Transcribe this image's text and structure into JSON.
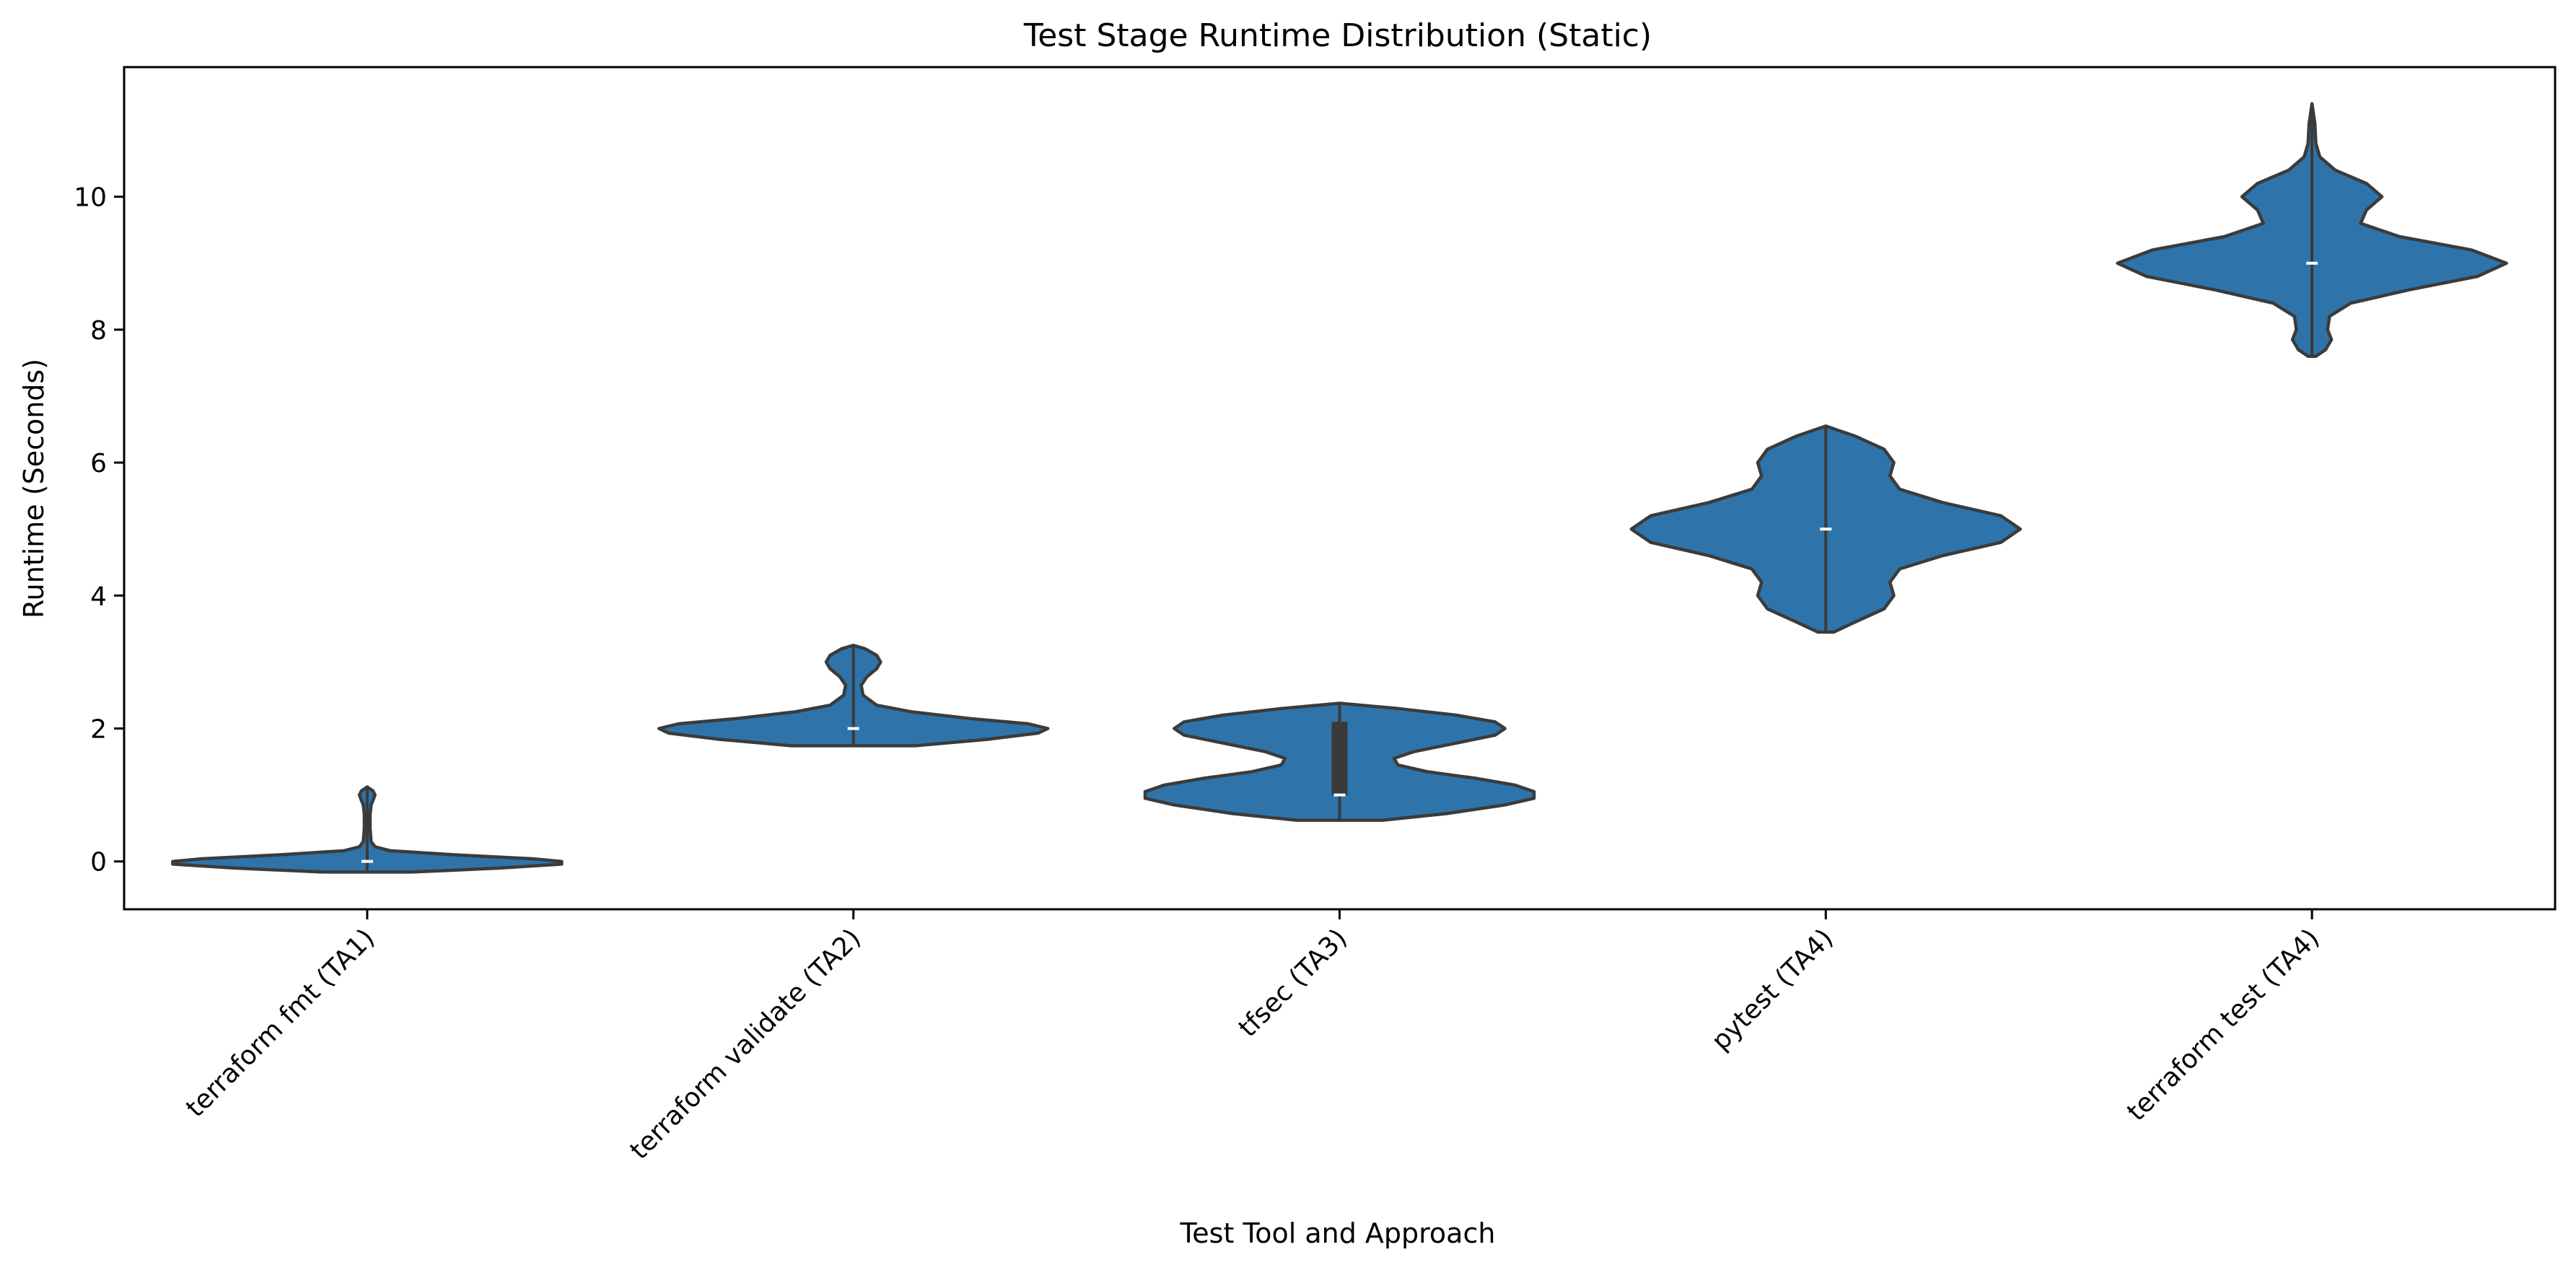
{
  "chart_data": {
    "type": "violin",
    "title": "Test Stage Runtime Distribution (Static)",
    "xlabel": "Test Tool and Approach",
    "ylabel": "Runtime (Seconds)",
    "categories": [
      "terraform fmt (TA1)",
      "terraform validate (TA2)",
      "tfsec (TA3)",
      "pytest (TA4)",
      "terraform test (TA4)"
    ],
    "ylim": [
      -0.72,
      11.95
    ],
    "yticks": [
      0,
      2,
      4,
      6,
      8,
      10
    ],
    "grid": false,
    "legend": "none",
    "colors": {
      "fill": "#2e74aa",
      "outline": "#3b3b3b",
      "median": "#ffffff",
      "box": "#3a3a3a"
    },
    "series": [
      {
        "category": "terraform fmt (TA1)",
        "median": 0,
        "q1": 0,
        "q3": 0,
        "min": -0.16,
        "max": 1.12,
        "profile": [
          [
            -0.16,
            0.23
          ],
          [
            -0.1,
            0.68
          ],
          [
            -0.04,
            1
          ],
          [
            0,
            1
          ],
          [
            0.04,
            0.85
          ],
          [
            0.1,
            0.45
          ],
          [
            0.16,
            0.12
          ],
          [
            0.22,
            0.04
          ],
          [
            0.3,
            0.02
          ],
          [
            0.5,
            0.015
          ],
          [
            0.7,
            0.015
          ],
          [
            0.85,
            0.02
          ],
          [
            0.92,
            0.03
          ],
          [
            1.0,
            0.04
          ],
          [
            1.06,
            0.03
          ],
          [
            1.12,
            0.0
          ]
        ]
      },
      {
        "category": "terraform validate (TA2)",
        "median": 2,
        "q1": 2,
        "q3": 2,
        "min": 1.74,
        "max": 3.25,
        "profile": [
          [
            1.74,
            0.32
          ],
          [
            1.84,
            0.7
          ],
          [
            1.93,
            0.95
          ],
          [
            2.0,
            1.0
          ],
          [
            2.07,
            0.9
          ],
          [
            2.15,
            0.6
          ],
          [
            2.25,
            0.3
          ],
          [
            2.35,
            0.12
          ],
          [
            2.5,
            0.05
          ],
          [
            2.65,
            0.04
          ],
          [
            2.78,
            0.07
          ],
          [
            2.9,
            0.12
          ],
          [
            3.0,
            0.14
          ],
          [
            3.1,
            0.12
          ],
          [
            3.2,
            0.06
          ],
          [
            3.25,
            0.0
          ]
        ]
      },
      {
        "category": "tfsec (TA3)",
        "median": 1,
        "q1": 1,
        "q3": 2.1,
        "min": 0.62,
        "max": 2.38,
        "profile": [
          [
            0.62,
            0.22
          ],
          [
            0.72,
            0.55
          ],
          [
            0.85,
            0.85
          ],
          [
            0.95,
            1.0
          ],
          [
            1.05,
            1.0
          ],
          [
            1.15,
            0.9
          ],
          [
            1.25,
            0.7
          ],
          [
            1.35,
            0.45
          ],
          [
            1.45,
            0.3
          ],
          [
            1.55,
            0.28
          ],
          [
            1.65,
            0.38
          ],
          [
            1.78,
            0.6
          ],
          [
            1.9,
            0.8
          ],
          [
            2.0,
            0.85
          ],
          [
            2.1,
            0.8
          ],
          [
            2.2,
            0.6
          ],
          [
            2.3,
            0.3
          ],
          [
            2.38,
            0.0
          ]
        ]
      },
      {
        "category": "pytest (TA4)",
        "median": 5,
        "q1": 5,
        "q3": 5,
        "min": 3.45,
        "max": 6.55,
        "profile": [
          [
            3.45,
            0.04
          ],
          [
            3.6,
            0.15
          ],
          [
            3.8,
            0.3
          ],
          [
            4.0,
            0.35
          ],
          [
            4.2,
            0.33
          ],
          [
            4.4,
            0.38
          ],
          [
            4.6,
            0.6
          ],
          [
            4.8,
            0.9
          ],
          [
            5.0,
            1.0
          ],
          [
            5.2,
            0.9
          ],
          [
            5.4,
            0.6
          ],
          [
            5.6,
            0.38
          ],
          [
            5.8,
            0.33
          ],
          [
            6.0,
            0.35
          ],
          [
            6.2,
            0.3
          ],
          [
            6.4,
            0.15
          ],
          [
            6.55,
            0.0
          ]
        ]
      },
      {
        "category": "terraform test (TA4)",
        "median": 9,
        "q1": 9,
        "q3": 9,
        "min": 7.6,
        "max": 11.4,
        "profile": [
          [
            7.6,
            0.02
          ],
          [
            7.7,
            0.07
          ],
          [
            7.85,
            0.1
          ],
          [
            8.0,
            0.08
          ],
          [
            8.2,
            0.09
          ],
          [
            8.4,
            0.2
          ],
          [
            8.6,
            0.5
          ],
          [
            8.8,
            0.85
          ],
          [
            9.0,
            1.0
          ],
          [
            9.2,
            0.82
          ],
          [
            9.4,
            0.45
          ],
          [
            9.6,
            0.25
          ],
          [
            9.8,
            0.28
          ],
          [
            10.0,
            0.36
          ],
          [
            10.2,
            0.28
          ],
          [
            10.4,
            0.12
          ],
          [
            10.6,
            0.04
          ],
          [
            10.8,
            0.02
          ],
          [
            11.1,
            0.015
          ],
          [
            11.4,
            0.0
          ]
        ]
      }
    ]
  }
}
